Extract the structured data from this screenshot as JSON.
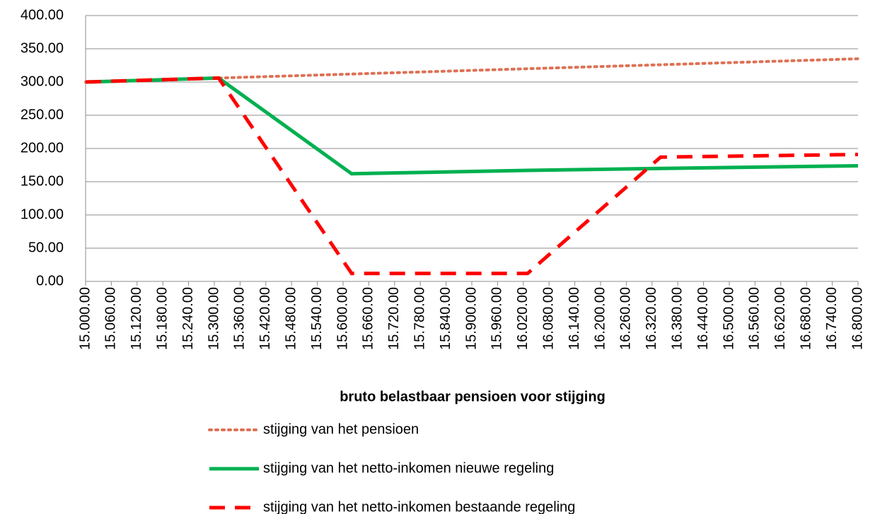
{
  "chart_data": {
    "type": "line",
    "xlabel": "bruto belastbaar pensioen voor stijging",
    "x": [
      15000,
      15310,
      15620,
      16030,
      16340,
      16800
    ],
    "series": [
      {
        "name": "stijging van het pensioen",
        "color": "#dd7155",
        "style": "dotted",
        "values": [
          300,
          306,
          312,
          320,
          326,
          335
        ]
      },
      {
        "name": "stijging van het netto-inkomen nieuwe regeling",
        "color": "#00b050",
        "style": "solid",
        "values": [
          300,
          306,
          162,
          167,
          170,
          174
        ]
      },
      {
        "name": "stijging van het netto-inkomen bestaande regeling",
        "color": "#ff0000",
        "style": "dashed",
        "values": [
          300,
          306,
          12,
          12,
          187,
          191
        ]
      }
    ],
    "xlim": [
      15000,
      16800
    ],
    "xticks": [
      {
        "value": 15000,
        "label": "15.000.00"
      },
      {
        "value": 15060,
        "label": "15.060.00"
      },
      {
        "value": 15120,
        "label": "15.120.00"
      },
      {
        "value": 15180,
        "label": "15.180.00"
      },
      {
        "value": 15240,
        "label": "15.240.00"
      },
      {
        "value": 15300,
        "label": "15.300.00"
      },
      {
        "value": 15360,
        "label": "15.360.00"
      },
      {
        "value": 15420,
        "label": "15.420.00"
      },
      {
        "value": 15480,
        "label": "15.480.00"
      },
      {
        "value": 15540,
        "label": "15.540.00"
      },
      {
        "value": 15600,
        "label": "15.600.00"
      },
      {
        "value": 15660,
        "label": "15.660.00"
      },
      {
        "value": 15720,
        "label": "15.720.00"
      },
      {
        "value": 15780,
        "label": "15.780.00"
      },
      {
        "value": 15840,
        "label": "15.840.00"
      },
      {
        "value": 15900,
        "label": "15.900.00"
      },
      {
        "value": 15960,
        "label": "15.960.00"
      },
      {
        "value": 16020,
        "label": "16.020.00"
      },
      {
        "value": 16080,
        "label": "16.080.00"
      },
      {
        "value": 16140,
        "label": "16.140.00"
      },
      {
        "value": 16200,
        "label": "16.200.00"
      },
      {
        "value": 16260,
        "label": "16.260.00"
      },
      {
        "value": 16320,
        "label": "16.320.00"
      },
      {
        "value": 16380,
        "label": "16.380.00"
      },
      {
        "value": 16440,
        "label": "16.440.00"
      },
      {
        "value": 16500,
        "label": "16.500.00"
      },
      {
        "value": 16560,
        "label": "16.560.00"
      },
      {
        "value": 16620,
        "label": "16.620.00"
      },
      {
        "value": 16680,
        "label": "16.680.00"
      },
      {
        "value": 16740,
        "label": "16.740.00"
      },
      {
        "value": 16800,
        "label": "16.800.00"
      }
    ],
    "ylim": [
      0,
      400
    ],
    "yticks": [
      {
        "value": 0,
        "label": "0.00"
      },
      {
        "value": 50,
        "label": "50.00"
      },
      {
        "value": 100,
        "label": "100.00"
      },
      {
        "value": 150,
        "label": "150.00"
      },
      {
        "value": 200,
        "label": "200.00"
      },
      {
        "value": 250,
        "label": "250.00"
      },
      {
        "value": 300,
        "label": "300.00"
      },
      {
        "value": 350,
        "label": "350.00"
      },
      {
        "value": 400,
        "label": "400.00"
      }
    ],
    "grid": true,
    "legend": "bottom"
  }
}
